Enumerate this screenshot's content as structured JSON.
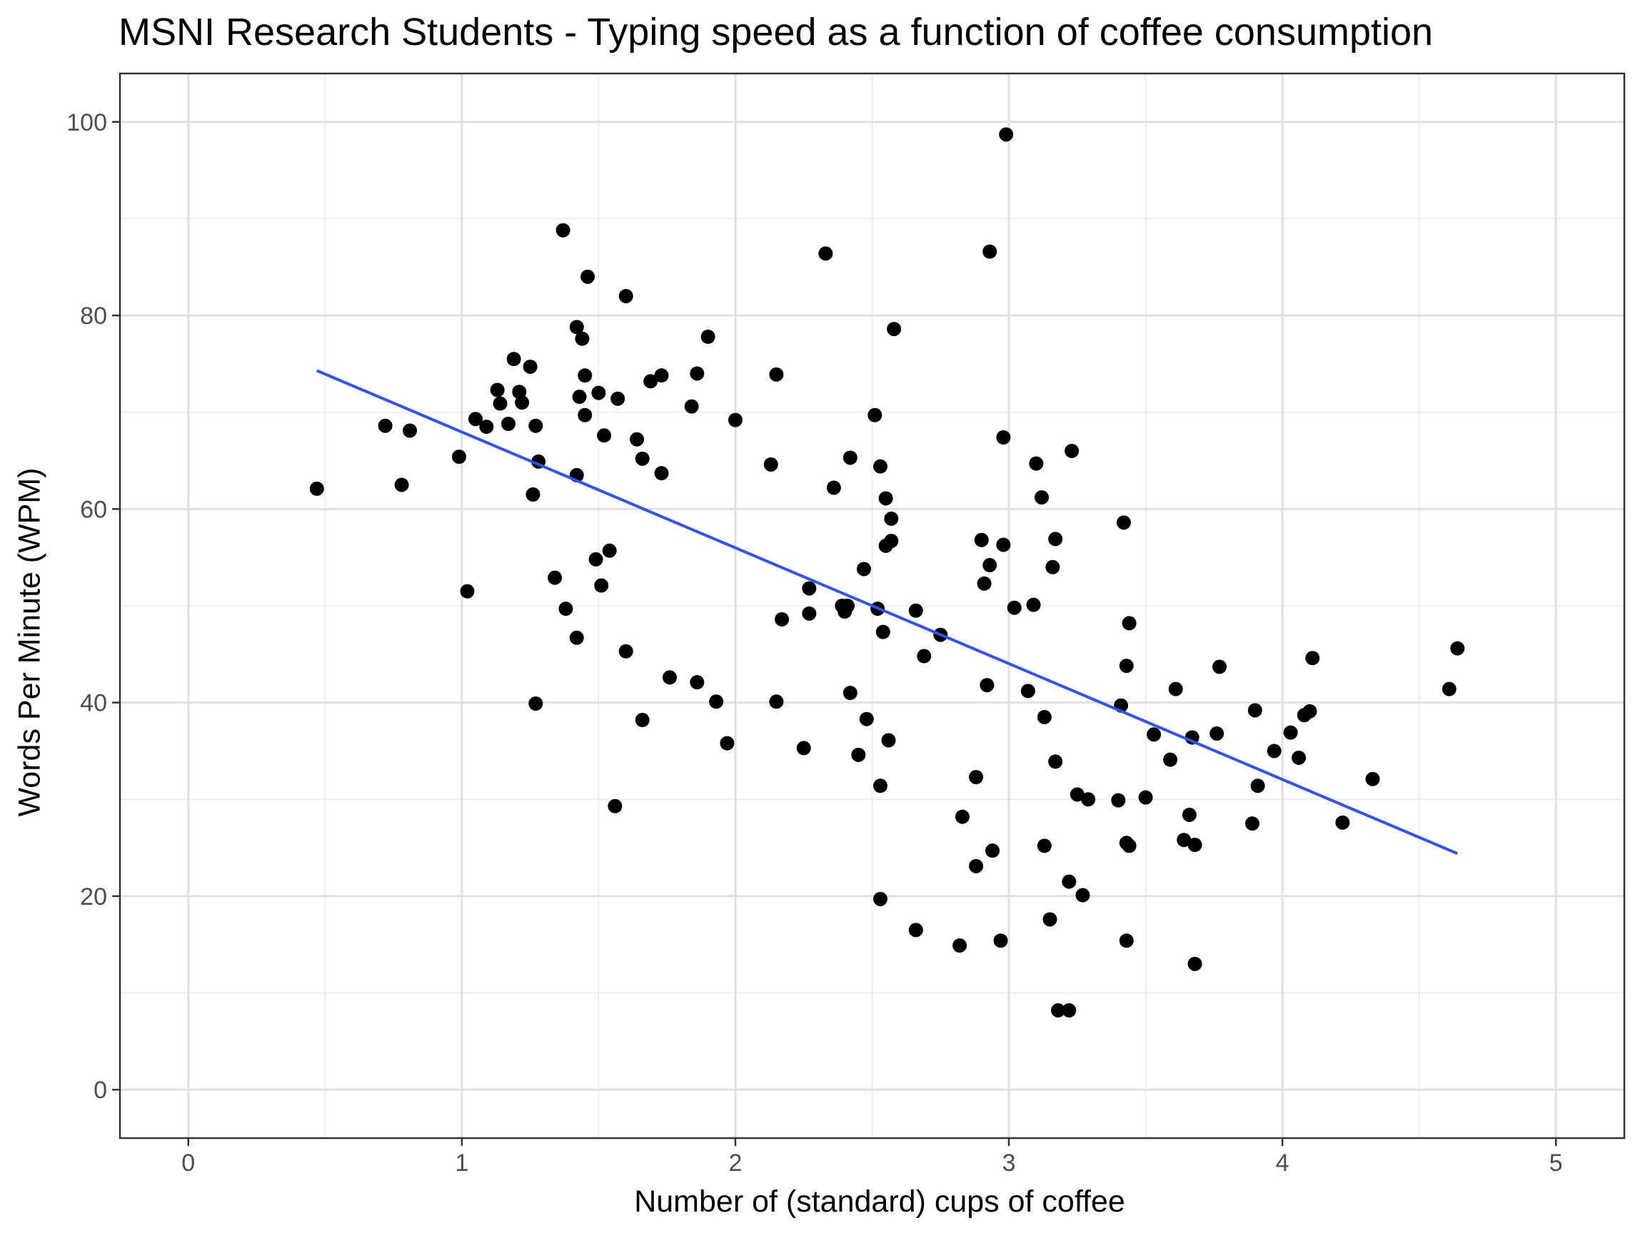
{
  "chart_data": {
    "type": "scatter",
    "title": "MSNI Research Students - Typing speed as a function of coffee consumption",
    "xlabel": "Number of (standard) cups of coffee",
    "ylabel": "Words Per Minute (WPM)",
    "xlim": [
      -0.25,
      5.25
    ],
    "ylim": [
      -5,
      105
    ],
    "x_ticks": [
      0,
      1,
      2,
      3,
      4,
      5
    ],
    "y_ticks": [
      0,
      20,
      40,
      60,
      80,
      100
    ],
    "grid": true,
    "point_color": "#000000",
    "trend_color": "#3050f8",
    "trend_line": {
      "x": [
        0.47,
        4.64
      ],
      "y": [
        74.3,
        24.4
      ]
    },
    "points": [
      [
        0.47,
        62.1
      ],
      [
        0.72,
        68.6
      ],
      [
        0.78,
        62.5
      ],
      [
        0.81,
        68.1
      ],
      [
        0.99,
        65.4
      ],
      [
        1.02,
        51.5
      ],
      [
        1.05,
        69.3
      ],
      [
        1.09,
        68.5
      ],
      [
        1.13,
        72.3
      ],
      [
        1.14,
        70.9
      ],
      [
        1.17,
        68.8
      ],
      [
        1.19,
        75.5
      ],
      [
        1.21,
        72.1
      ],
      [
        1.22,
        71.0
      ],
      [
        1.25,
        74.7
      ],
      [
        1.26,
        61.5
      ],
      [
        1.27,
        39.9
      ],
      [
        1.27,
        68.6
      ],
      [
        1.28,
        64.9
      ],
      [
        1.34,
        52.9
      ],
      [
        1.37,
        88.8
      ],
      [
        1.38,
        49.7
      ],
      [
        1.42,
        46.7
      ],
      [
        1.42,
        78.8
      ],
      [
        1.42,
        63.5
      ],
      [
        1.43,
        71.6
      ],
      [
        1.44,
        77.6
      ],
      [
        1.45,
        73.8
      ],
      [
        1.45,
        69.7
      ],
      [
        1.46,
        84.0
      ],
      [
        1.49,
        54.8
      ],
      [
        1.5,
        72.0
      ],
      [
        1.51,
        52.1
      ],
      [
        1.52,
        67.6
      ],
      [
        1.54,
        55.7
      ],
      [
        1.56,
        29.3
      ],
      [
        1.57,
        71.4
      ],
      [
        1.6,
        82.0
      ],
      [
        1.6,
        45.3
      ],
      [
        1.64,
        67.2
      ],
      [
        1.66,
        65.2
      ],
      [
        1.66,
        38.2
      ],
      [
        1.69,
        73.2
      ],
      [
        1.73,
        73.8
      ],
      [
        1.73,
        63.7
      ],
      [
        1.76,
        42.6
      ],
      [
        1.84,
        70.6
      ],
      [
        1.86,
        74.0
      ],
      [
        1.86,
        42.1
      ],
      [
        1.9,
        77.8
      ],
      [
        1.93,
        40.1
      ],
      [
        1.97,
        35.8
      ],
      [
        2.0,
        69.2
      ],
      [
        2.13,
        64.6
      ],
      [
        2.15,
        73.9
      ],
      [
        2.15,
        40.1
      ],
      [
        2.17,
        48.6
      ],
      [
        2.25,
        35.3
      ],
      [
        2.27,
        51.8
      ],
      [
        2.27,
        49.2
      ],
      [
        2.33,
        86.4
      ],
      [
        2.36,
        62.2
      ],
      [
        2.39,
        50.0
      ],
      [
        2.4,
        49.4
      ],
      [
        2.41,
        50.0
      ],
      [
        2.42,
        65.3
      ],
      [
        2.42,
        41.0
      ],
      [
        2.45,
        34.6
      ],
      [
        2.47,
        53.8
      ],
      [
        2.48,
        38.3
      ],
      [
        2.51,
        69.7
      ],
      [
        2.52,
        49.7
      ],
      [
        2.53,
        64.4
      ],
      [
        2.53,
        31.4
      ],
      [
        2.53,
        19.7
      ],
      [
        2.54,
        47.3
      ],
      [
        2.55,
        61.1
      ],
      [
        2.55,
        56.2
      ],
      [
        2.56,
        36.1
      ],
      [
        2.57,
        56.7
      ],
      [
        2.57,
        59.0
      ],
      [
        2.58,
        78.6
      ],
      [
        2.66,
        49.5
      ],
      [
        2.66,
        16.5
      ],
      [
        2.69,
        44.8
      ],
      [
        2.75,
        47.0
      ],
      [
        2.82,
        14.9
      ],
      [
        2.83,
        28.2
      ],
      [
        2.88,
        32.3
      ],
      [
        2.88,
        23.1
      ],
      [
        2.9,
        56.8
      ],
      [
        2.91,
        52.3
      ],
      [
        2.92,
        41.8
      ],
      [
        2.93,
        54.2
      ],
      [
        2.93,
        86.6
      ],
      [
        2.94,
        24.7
      ],
      [
        2.97,
        15.4
      ],
      [
        2.98,
        56.3
      ],
      [
        2.98,
        67.4
      ],
      [
        2.99,
        98.7
      ],
      [
        3.02,
        49.8
      ],
      [
        3.07,
        41.2
      ],
      [
        3.09,
        50.1
      ],
      [
        3.1,
        64.7
      ],
      [
        3.12,
        61.2
      ],
      [
        3.13,
        38.5
      ],
      [
        3.13,
        25.2
      ],
      [
        3.15,
        17.6
      ],
      [
        3.16,
        54.0
      ],
      [
        3.17,
        56.9
      ],
      [
        3.17,
        33.9
      ],
      [
        3.18,
        8.2
      ],
      [
        3.22,
        8.2
      ],
      [
        3.22,
        21.5
      ],
      [
        3.23,
        66.0
      ],
      [
        3.25,
        30.5
      ],
      [
        3.27,
        20.1
      ],
      [
        3.29,
        30.0
      ],
      [
        3.4,
        29.9
      ],
      [
        3.41,
        39.7
      ],
      [
        3.42,
        58.6
      ],
      [
        3.43,
        43.8
      ],
      [
        3.43,
        25.5
      ],
      [
        3.43,
        15.4
      ],
      [
        3.44,
        25.2
      ],
      [
        3.44,
        48.2
      ],
      [
        3.5,
        30.2
      ],
      [
        3.53,
        36.7
      ],
      [
        3.59,
        34.1
      ],
      [
        3.61,
        41.4
      ],
      [
        3.64,
        25.8
      ],
      [
        3.66,
        28.4
      ],
      [
        3.67,
        36.4
      ],
      [
        3.68,
        25.3
      ],
      [
        3.68,
        13.0
      ],
      [
        3.76,
        36.8
      ],
      [
        3.77,
        43.7
      ],
      [
        3.89,
        27.5
      ],
      [
        3.9,
        39.2
      ],
      [
        3.91,
        31.4
      ],
      [
        3.97,
        35.0
      ],
      [
        4.03,
        36.9
      ],
      [
        4.06,
        34.3
      ],
      [
        4.08,
        38.7
      ],
      [
        4.1,
        39.1
      ],
      [
        4.11,
        44.6
      ],
      [
        4.22,
        27.6
      ],
      [
        4.33,
        32.1
      ],
      [
        4.61,
        41.4
      ],
      [
        4.64,
        45.6
      ]
    ]
  }
}
